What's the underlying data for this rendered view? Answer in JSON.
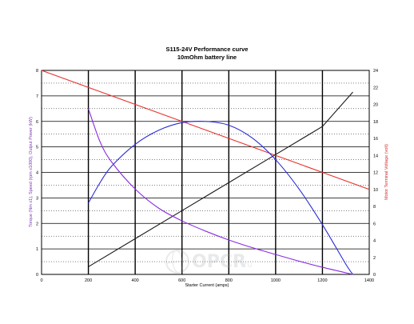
{
  "chart_data": {
    "type": "line",
    "title": "S115-24V Performance  curve",
    "subtitle": "10mOhm battery line",
    "xlabel": "Starter Current (amps)",
    "ylabel_left": "Torque (Nm x1), Speed (rpm x1000), Output Power (kW)",
    "ylabel_right": "Motor Terminal Voltage (volt)",
    "xlim": [
      0,
      1400
    ],
    "ylim_left": [
      0,
      8
    ],
    "ylim_right": [
      0,
      24
    ],
    "xticks": [
      "0",
      "200",
      "400",
      "600",
      "800",
      "1000",
      "1200",
      "1400"
    ],
    "yticks_left": [
      "0",
      "1",
      "2",
      "3",
      "4",
      "5",
      "6",
      "7",
      "8"
    ],
    "yticks_right": [
      "0",
      "2",
      "4",
      "6",
      "8",
      "10",
      "12",
      "14",
      "16",
      "18",
      "20",
      "22",
      "24"
    ],
    "grid": true,
    "colors": {
      "voltage": "#e8302a",
      "torque": "#1a1a1a",
      "power": "#2a2ad8",
      "speed": "#8a2be2",
      "label_purple": "#7b3ab0",
      "label_red": "#d32f2f"
    },
    "series": [
      {
        "key": "voltage",
        "axis": "right",
        "x": [
          0,
          200,
          400,
          600,
          800,
          1000,
          1200,
          1400
        ],
        "y": [
          24,
          22,
          20,
          18,
          16,
          14,
          12,
          10
        ]
      },
      {
        "key": "torque",
        "axis": "left",
        "x": [
          200,
          400,
          600,
          800,
          1000,
          1200,
          1330
        ],
        "y": [
          0.3,
          1.4,
          2.5,
          3.6,
          4.7,
          5.8,
          7.15
        ]
      },
      {
        "key": "power",
        "axis": "left",
        "x": [
          200,
          250,
          300,
          400,
          500,
          600,
          700,
          800,
          900,
          1000,
          1100,
          1200,
          1300,
          1330
        ],
        "y": [
          2.8,
          3.6,
          4.25,
          5.1,
          5.65,
          5.95,
          6.0,
          5.85,
          5.35,
          4.5,
          3.35,
          1.95,
          0.4,
          0.0
        ]
      },
      {
        "key": "speed",
        "axis": "left",
        "x": [
          200,
          250,
          300,
          400,
          500,
          600,
          700,
          800,
          900,
          1000,
          1100,
          1200,
          1330
        ],
        "y": [
          6.5,
          5.2,
          4.4,
          3.35,
          2.6,
          2.1,
          1.7,
          1.35,
          1.05,
          0.78,
          0.52,
          0.28,
          0.0
        ]
      }
    ]
  },
  "watermark": {
    "text": "OPCR",
    "suffix": ".ru"
  }
}
